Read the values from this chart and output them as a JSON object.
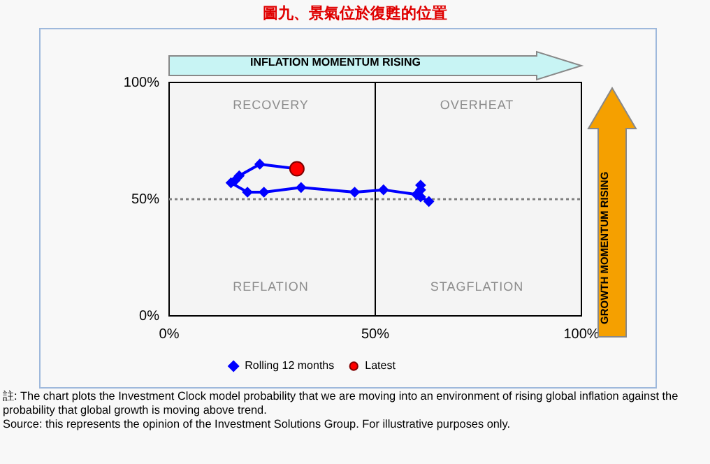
{
  "chart_data": {
    "type": "line",
    "title": "圖九、景氣位於復甦的位置",
    "xlabel": "INFLATION MOMENTUM RISING",
    "ylabel": "GROWTH MOMENTUM RISING",
    "xlim": [
      0,
      100
    ],
    "ylim": [
      0,
      100
    ],
    "xticks": [
      {
        "value": 0,
        "label": "0%"
      },
      {
        "value": 50,
        "label": "50%"
      },
      {
        "value": 100,
        "label": "100%"
      }
    ],
    "yticks": [
      {
        "value": 0,
        "label": "0%"
      },
      {
        "value": 50,
        "label": "50%"
      },
      {
        "value": 100,
        "label": "100%"
      }
    ],
    "grid": false,
    "legend": "bottom",
    "marker": "diamond",
    "ref_lines": [
      {
        "axis": "x",
        "value": 50,
        "color": "#000000",
        "line_style": "solid"
      },
      {
        "axis": "y",
        "value": 50,
        "color": "#808080",
        "line_style": "dotted"
      }
    ],
    "series": [
      {
        "name": "Rolling 12 months",
        "color": "#0000ff",
        "x": [
          63,
          61,
          61,
          61,
          60,
          52,
          45,
          32,
          23,
          19,
          15,
          16,
          17,
          22,
          31
        ],
        "values": [
          49,
          51,
          56,
          54,
          52,
          54,
          53,
          55,
          53,
          53,
          57,
          58,
          60,
          65,
          63
        ]
      },
      {
        "name": "Latest",
        "type": "scatter",
        "marker": "circle",
        "color": "#ff0000",
        "x": [
          31
        ],
        "values": [
          63
        ]
      }
    ],
    "annotations": [
      "RECOVERY",
      "OVERHEAT",
      "REFLATION",
      "STAGFLATION",
      "註: The chart plots the Investment Clock model probability that we are moving into an environment of rising global inflation against the probability that global growth is moving above trend.",
      "Source: this represents the opinion of the Investment Solutions Group. For illustrative purposes only."
    ]
  }
}
